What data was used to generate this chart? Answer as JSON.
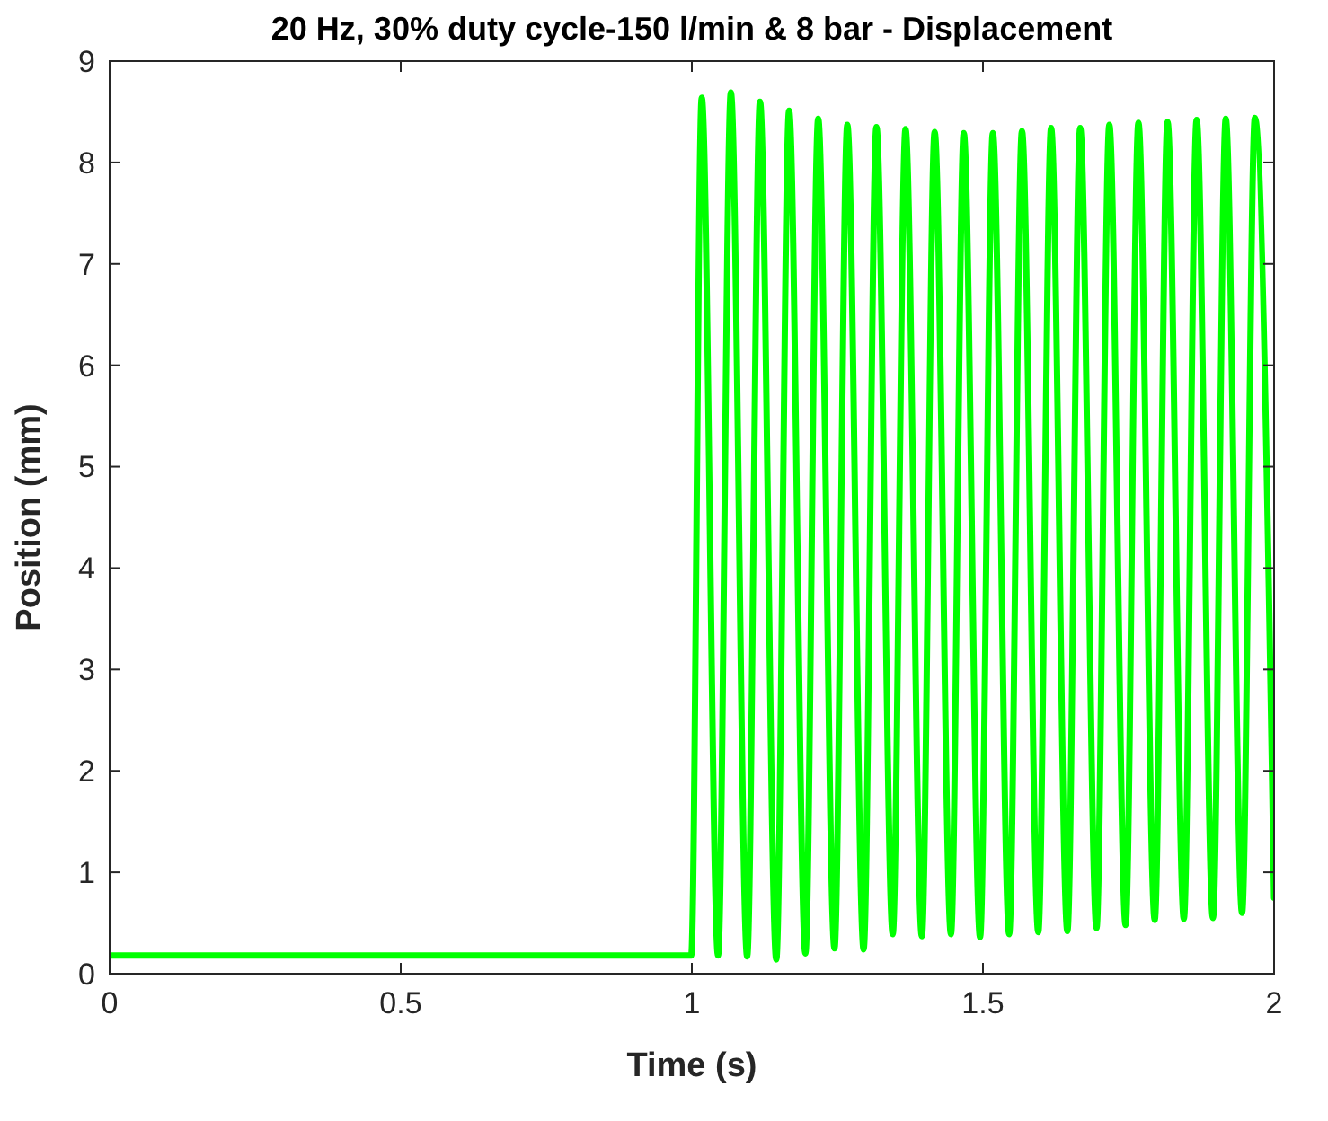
{
  "chart_data": {
    "type": "line",
    "title": "20 Hz, 30% duty cycle-150 l/min & 8 bar - Displacement",
    "xlabel": "Time (s)",
    "ylabel": "Position (mm)",
    "xlim": [
      0,
      2
    ],
    "xticks": [
      0,
      0.5,
      1,
      1.5,
      2
    ],
    "ylim": [
      0,
      9
    ],
    "yticks": [
      0,
      1,
      2,
      3,
      4,
      5,
      6,
      7,
      8,
      9
    ],
    "grid": false,
    "line_style": "solid",
    "marker": "none",
    "series": [
      {
        "color": "#00ff00",
        "x": [
          0,
          0.25,
          0.5,
          0.75,
          0.999,
          1.017,
          1.045,
          1.067,
          1.095,
          1.117,
          1.145,
          1.167,
          1.195,
          1.217,
          1.245,
          1.267,
          1.295,
          1.317,
          1.345,
          1.367,
          1.395,
          1.417,
          1.445,
          1.467,
          1.495,
          1.517,
          1.545,
          1.567,
          1.595,
          1.617,
          1.645,
          1.667,
          1.695,
          1.717,
          1.745,
          1.767,
          1.795,
          1.817,
          1.845,
          1.867,
          1.895,
          1.917,
          1.945,
          1.967,
          2
        ],
        "values": [
          0.18,
          0.18,
          0.18,
          0.18,
          0.18,
          8.64,
          0.18,
          8.69,
          0.17,
          8.6,
          0.14,
          8.51,
          0.2,
          8.43,
          0.25,
          8.37,
          0.24,
          8.35,
          0.39,
          8.33,
          0.37,
          8.3,
          0.39,
          8.29,
          0.36,
          8.29,
          0.39,
          8.31,
          0.41,
          8.34,
          0.42,
          8.34,
          0.45,
          8.37,
          0.48,
          8.39,
          0.53,
          8.4,
          0.54,
          8.42,
          0.55,
          8.43,
          0.6,
          8.44,
          0.75
        ]
      }
    ]
  }
}
